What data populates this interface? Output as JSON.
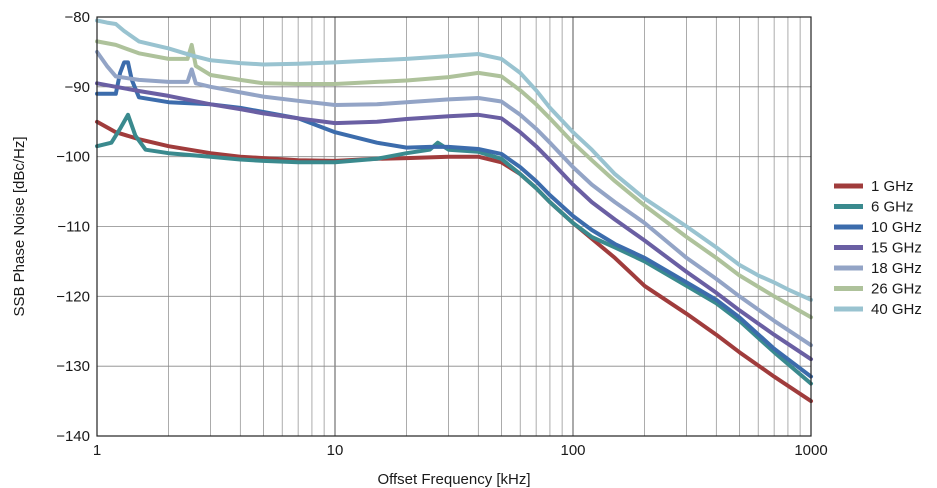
{
  "chart_data": {
    "type": "line",
    "title": "",
    "xlabel": "Offset Frequency [kHz]",
    "ylabel": "SSB Phase Noise [dBc/Hz]",
    "xscale": "log",
    "xlim": [
      1,
      1000
    ],
    "ylim": [
      -140,
      -80
    ],
    "x_ticks": [
      1,
      10,
      100,
      1000
    ],
    "x_tick_labels": [
      "1",
      "10",
      "100",
      "1000"
    ],
    "y_ticks": [
      -140,
      -130,
      -120,
      -110,
      -100,
      -90,
      -80
    ],
    "y_tick_labels": [
      "−140",
      "−130",
      "−120",
      "−110",
      "−100",
      "−90",
      "−80"
    ],
    "grid": true,
    "legend_position": "right",
    "series": [
      {
        "name": "1 GHz",
        "color": "#a03c3c",
        "x": [
          1,
          1.2,
          1.5,
          2,
          3,
          4,
          5,
          7,
          10,
          15,
          20,
          30,
          40,
          50,
          60,
          70,
          80,
          100,
          150,
          200,
          300,
          400,
          500,
          700,
          1000
        ],
        "y": [
          -95,
          -96.5,
          -97.5,
          -98.5,
          -99.5,
          -100,
          -100.2,
          -100.5,
          -100.6,
          -100.3,
          -100.2,
          -100,
          -100,
          -100.8,
          -102.5,
          -104.5,
          -106.5,
          -109.5,
          -114.5,
          -118.5,
          -122.5,
          -125.5,
          -128,
          -131.5,
          -135
        ]
      },
      {
        "name": "6 GHz",
        "color": "#3a8a8e",
        "x": [
          1,
          1.15,
          1.25,
          1.35,
          1.45,
          1.6,
          2,
          3,
          4,
          5,
          7,
          10,
          15,
          20,
          25,
          27,
          30,
          40,
          50,
          60,
          70,
          80,
          100,
          120,
          150,
          200,
          300,
          400,
          500,
          700,
          1000
        ],
        "y": [
          -98.5,
          -98,
          -96,
          -94,
          -97,
          -99,
          -99.5,
          -100,
          -100.4,
          -100.6,
          -100.8,
          -100.8,
          -100.3,
          -99.5,
          -99,
          -98,
          -99,
          -99.3,
          -100.3,
          -102.5,
          -104.5,
          -106.5,
          -109.5,
          -111.5,
          -113,
          -115,
          -118.5,
          -121,
          -123.5,
          -128,
          -132.5
        ]
      },
      {
        "name": "10 GHz",
        "color": "#3c6cac",
        "x": [
          1,
          1.2,
          1.25,
          1.3,
          1.35,
          1.4,
          1.5,
          2,
          3,
          4,
          5,
          7,
          10,
          15,
          20,
          25,
          30,
          40,
          50,
          60,
          70,
          80,
          100,
          120,
          150,
          200,
          300,
          400,
          500,
          700,
          1000
        ],
        "y": [
          -91,
          -91,
          -88,
          -86.5,
          -86.5,
          -89,
          -91.5,
          -92.2,
          -92.5,
          -93,
          -93.6,
          -94.5,
          -96.5,
          -98,
          -98.7,
          -98.6,
          -98.6,
          -98.9,
          -99.6,
          -101.5,
          -103.5,
          -105.5,
          -108.5,
          -110.5,
          -112.5,
          -114.5,
          -118,
          -120.5,
          -123,
          -127.5,
          -131.5
        ]
      },
      {
        "name": "15 GHz",
        "color": "#6a5fa3",
        "x": [
          1,
          1.2,
          1.5,
          2,
          3,
          4,
          5,
          7,
          10,
          15,
          20,
          30,
          40,
          50,
          60,
          70,
          80,
          100,
          120,
          150,
          200,
          300,
          400,
          500,
          700,
          1000
        ],
        "y": [
          -89.5,
          -90,
          -90.6,
          -91.3,
          -92.5,
          -93.2,
          -93.8,
          -94.5,
          -95.2,
          -95,
          -94.6,
          -94.2,
          -94,
          -94.5,
          -96.5,
          -98.5,
          -100.5,
          -104,
          -106.5,
          -109,
          -112,
          -116.5,
          -119.5,
          -122,
          -125.5,
          -129
        ]
      },
      {
        "name": "18 GHz",
        "color": "#93a4c6",
        "x": [
          1,
          1.1,
          1.2,
          1.5,
          2,
          2.4,
          2.5,
          2.6,
          3,
          4,
          5,
          7,
          10,
          15,
          20,
          30,
          40,
          50,
          60,
          70,
          80,
          100,
          120,
          150,
          200,
          300,
          400,
          500,
          700,
          1000
        ],
        "y": [
          -85,
          -87,
          -88.5,
          -89,
          -89.3,
          -89.3,
          -87.5,
          -89.5,
          -90,
          -90.8,
          -91.4,
          -92,
          -92.6,
          -92.5,
          -92.2,
          -91.8,
          -91.6,
          -92.1,
          -94,
          -96,
          -98,
          -101.5,
          -104,
          -106.5,
          -109.5,
          -114.5,
          -117.5,
          -120,
          -123.5,
          -127
        ]
      },
      {
        "name": "26 GHz",
        "color": "#aec29b",
        "x": [
          1,
          1.2,
          1.5,
          2,
          2.4,
          2.5,
          2.6,
          3,
          4,
          5,
          7,
          10,
          15,
          20,
          30,
          40,
          50,
          60,
          70,
          80,
          100,
          120,
          150,
          200,
          300,
          400,
          500,
          700,
          1000
        ],
        "y": [
          -83.5,
          -84,
          -85.2,
          -86,
          -86,
          -84,
          -87,
          -88.3,
          -89,
          -89.5,
          -89.6,
          -89.6,
          -89.3,
          -89.1,
          -88.6,
          -88,
          -88.5,
          -90.5,
          -92.5,
          -94.5,
          -98,
          -100.5,
          -103.5,
          -107,
          -111.5,
          -114.5,
          -117,
          -120,
          -123
        ]
      },
      {
        "name": "40 GHz",
        "color": "#99c3d0",
        "x": [
          1,
          1.1,
          1.2,
          1.3,
          1.5,
          2,
          2.5,
          3,
          4,
          5,
          7,
          10,
          15,
          20,
          30,
          40,
          50,
          60,
          70,
          80,
          100,
          120,
          150,
          200,
          300,
          400,
          500,
          600,
          700,
          800,
          1000
        ],
        "y": [
          -80.5,
          -80.8,
          -81,
          -82,
          -83.5,
          -84.5,
          -85.5,
          -86.2,
          -86.6,
          -86.8,
          -86.7,
          -86.5,
          -86.2,
          -86,
          -85.6,
          -85.3,
          -86,
          -88,
          -90.5,
          -93,
          -96.5,
          -99,
          -102.5,
          -106,
          -110,
          -113,
          -115.5,
          -117,
          -118,
          -119,
          -120.5
        ]
      }
    ]
  }
}
